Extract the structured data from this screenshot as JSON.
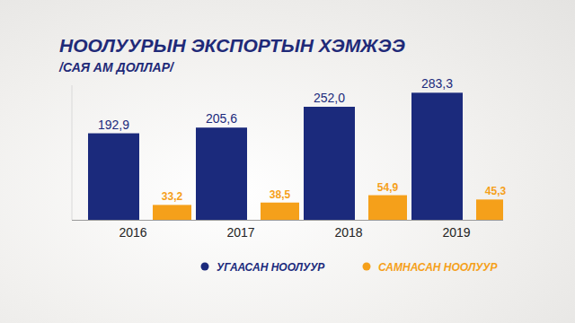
{
  "chart_data": {
    "type": "bar",
    "title": "НООЛУУРЫН ЭКСПОРТЫН ХЭМЖЭЭ",
    "subtitle": "/САЯ АМ ДОЛЛАР/",
    "categories": [
      "2016",
      "2017",
      "2018",
      "2019"
    ],
    "series": [
      {
        "name": "УГААСАН НООЛУУР",
        "color": "#1b2a7c",
        "values": [
          192.9,
          205.6,
          252.0,
          283.3
        ],
        "value_labels": [
          "192,9",
          "205,6",
          "252,0",
          "283,3"
        ]
      },
      {
        "name": "САМНАСАН НООЛУУР",
        "color": "#f5a01a",
        "values": [
          33.2,
          38.5,
          54.9,
          45.3
        ],
        "value_labels": [
          "33,2",
          "38,5",
          "54,9",
          "45,3"
        ]
      }
    ],
    "ylim": [
      0,
      300
    ],
    "grid": false,
    "legend": "bottom",
    "data_labels": true,
    "tick_labels": "x"
  }
}
